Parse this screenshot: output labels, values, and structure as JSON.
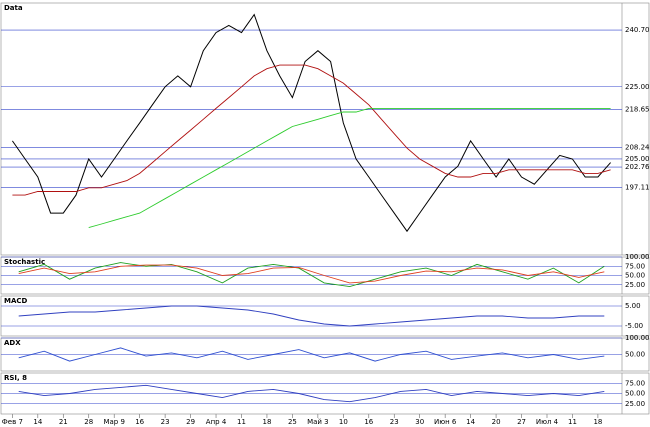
{
  "chart_data": [
    {
      "type": "line",
      "title": "Data",
      "categories": [
        "Фев 7",
        null,
        "14",
        null,
        "21",
        null,
        "28",
        null,
        "Мар 9",
        null,
        "16",
        null,
        "23",
        null,
        "29",
        null,
        "Апр 4",
        null,
        "11",
        null,
        "18",
        null,
        "25",
        null,
        "Май 3",
        null,
        "10",
        null,
        "16",
        null,
        "23",
        null,
        "30",
        null,
        "Июн 6",
        null,
        "14",
        null,
        "20",
        null,
        "27",
        null,
        "Июл 4",
        null,
        "11",
        null,
        "18",
        null
      ],
      "series": [
        {
          "color": "#000000",
          "values": [
            210,
            205,
            200,
            190,
            190,
            195,
            205,
            200,
            205,
            210,
            215,
            220,
            225,
            228,
            225,
            235,
            240,
            242,
            240,
            245,
            235,
            228,
            222,
            232,
            235,
            232,
            215,
            205,
            200,
            195,
            190,
            185,
            190,
            195,
            200,
            203,
            210,
            205,
            200,
            205,
            200,
            198,
            202,
            206,
            205,
            200,
            200,
            204
          ]
        },
        {
          "color": "#b01010",
          "values": [
            195,
            195,
            196,
            196,
            196,
            196,
            197,
            197,
            198,
            199,
            201,
            204,
            207,
            210,
            213,
            216,
            219,
            222,
            225,
            228,
            230,
            231,
            231,
            231,
            230,
            228,
            226,
            223,
            220,
            216,
            212,
            208,
            205,
            203,
            201,
            200,
            200,
            201,
            201,
            202,
            202,
            202,
            202,
            202,
            202,
            201,
            201,
            202
          ]
        },
        {
          "color": "#2ecc2e",
          "values": [
            null,
            null,
            null,
            null,
            null,
            null,
            186,
            187,
            188,
            189,
            190,
            192,
            194,
            196,
            198,
            200,
            202,
            204,
            206,
            208,
            210,
            212,
            214,
            215,
            216,
            217,
            218,
            218,
            219,
            219,
            219,
            219,
            219,
            219,
            219,
            219,
            219,
            219,
            219,
            219,
            219,
            219,
            219,
            219,
            219,
            219,
            219,
            219
          ]
        }
      ],
      "ylim": [
        178.4,
        248.2
      ],
      "yticks": [
        {
          "value": 240.7,
          "label": "240.70"
        },
        {
          "value": 225,
          "label": "225.00"
        },
        {
          "value": 218.65,
          "label": "218.65"
        },
        {
          "value": 208.24,
          "label": "208.24"
        },
        {
          "value": 205,
          "label": "205.00"
        },
        {
          "value": 202.76,
          "label": "202.76"
        },
        {
          "value": 197.11,
          "label": "197.11"
        }
      ]
    },
    {
      "type": "line",
      "title": "Stochastic",
      "series": [
        {
          "color": "#20a020",
          "values": [
            60,
            80,
            40,
            70,
            85,
            75,
            80,
            60,
            30,
            70,
            80,
            70,
            30,
            20,
            40,
            60,
            70,
            50,
            80,
            60,
            40,
            70,
            30,
            75
          ]
        },
        {
          "color": "#e04020",
          "values": [
            55,
            70,
            55,
            60,
            75,
            78,
            78,
            70,
            50,
            55,
            70,
            72,
            50,
            30,
            35,
            50,
            62,
            60,
            70,
            65,
            50,
            60,
            45,
            60
          ]
        }
      ],
      "ylim": [
        0,
        100
      ],
      "yticks": [
        {
          "value": 100,
          "label": "100.00"
        },
        {
          "value": 75,
          "label": "75.00"
        },
        {
          "value": 50,
          "label": "50.00"
        },
        {
          "value": 25,
          "label": "25.00"
        }
      ]
    },
    {
      "type": "line",
      "title": "MACD",
      "series": [
        {
          "color": "#3040c0",
          "values": [
            0,
            1,
            2,
            2,
            3,
            4,
            5,
            5,
            4,
            3,
            1,
            -2,
            -4,
            -5,
            -4,
            -3,
            -2,
            -1,
            0,
            0,
            -1,
            -1,
            0,
            0
          ]
        }
      ],
      "ylim": [
        -10,
        10
      ],
      "yticks": [
        {
          "value": 5,
          "label": "5.00"
        },
        {
          "value": -5,
          "label": "-5.00"
        }
      ]
    },
    {
      "type": "line",
      "title": "ADX",
      "series": [
        {
          "color": "#3050d0",
          "values": [
            40,
            60,
            30,
            50,
            70,
            45,
            55,
            40,
            60,
            35,
            50,
            65,
            40,
            55,
            30,
            50,
            60,
            35,
            45,
            55,
            40,
            50,
            35,
            45
          ]
        }
      ],
      "ylim": [
        0,
        100
      ],
      "yticks": [
        {
          "value": 100,
          "label": "100.00"
        },
        {
          "value": 50,
          "label": "50.00"
        }
      ]
    },
    {
      "type": "line",
      "title": "RSI, 8",
      "series": [
        {
          "color": "#3040c0",
          "values": [
            55,
            45,
            50,
            60,
            65,
            70,
            60,
            50,
            40,
            55,
            60,
            50,
            35,
            30,
            40,
            55,
            60,
            45,
            55,
            50,
            45,
            50,
            45,
            55
          ]
        }
      ],
      "ylim": [
        0,
        100
      ],
      "yticks": [
        {
          "value": 75,
          "label": "75.00"
        },
        {
          "value": 50,
          "label": "50.00"
        },
        {
          "value": 25,
          "label": "25.00"
        }
      ]
    }
  ]
}
